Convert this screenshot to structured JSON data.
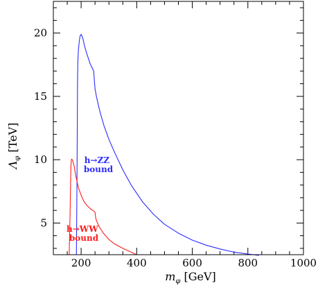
{
  "chart_data": {
    "type": "line",
    "title": "",
    "xlabel_var": "m",
    "xlabel_sub": "φ",
    "xlabel_unit": " [GeV]",
    "ylabel_var": "Λ",
    "ylabel_sub": "φ",
    "ylabel_unit": " [TeV]",
    "xlim": [
      100,
      1000
    ],
    "ylim": [
      2.5,
      22.5
    ],
    "xticks_major": [
      200,
      400,
      600,
      800,
      1000
    ],
    "xticks_minor_step": 50,
    "yticks_major": [
      5,
      10,
      15,
      20
    ],
    "yticks_minor_step": 1,
    "series": [
      {
        "name": "h→ZZ bound",
        "color": "#2b2bff",
        "label_line1": "h→ZZ",
        "label_line2": "bound",
        "x": [
          183,
          185,
          186,
          187,
          188,
          190,
          193,
          196,
          200,
          206,
          212,
          220,
          232,
          245,
          250,
          255,
          262,
          270,
          282,
          300,
          320,
          350,
          380,
          420,
          460,
          500,
          550,
          600,
          650,
          700,
          750,
          800,
          840
        ],
        "y": [
          2.5,
          8.0,
          12.0,
          16.0,
          17.6,
          18.6,
          19.3,
          19.75,
          19.9,
          19.6,
          19.0,
          18.4,
          17.6,
          17.0,
          15.6,
          15.0,
          14.3,
          13.6,
          12.7,
          11.6,
          10.6,
          9.2,
          8.0,
          6.7,
          5.7,
          4.9,
          4.2,
          3.65,
          3.25,
          2.95,
          2.7,
          2.55,
          2.45
        ]
      },
      {
        "name": "h→WW bound",
        "color": "#ff1c1c",
        "label_line1": "h→WW",
        "label_line2": "bound",
        "x": [
          157,
          160,
          162,
          163,
          164,
          165,
          166,
          168,
          170,
          175,
          180,
          190,
          200,
          210,
          220,
          235,
          245,
          250,
          252,
          255,
          265,
          280,
          300,
          320,
          350,
          380,
          400
        ],
        "y": [
          2.5,
          5.5,
          8.0,
          9.3,
          9.8,
          10.0,
          10.05,
          10.0,
          9.9,
          9.5,
          8.8,
          7.8,
          7.2,
          6.7,
          6.4,
          6.1,
          5.95,
          5.85,
          5.45,
          5.2,
          4.7,
          4.2,
          3.7,
          3.35,
          3.0,
          2.7,
          2.5
        ]
      }
    ]
  }
}
